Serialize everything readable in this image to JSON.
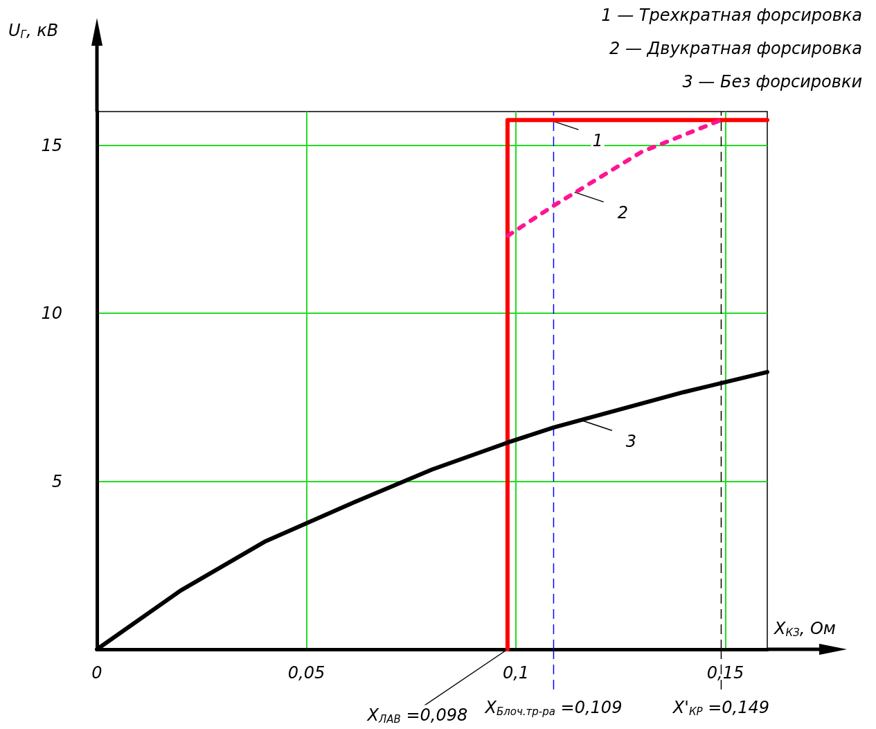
{
  "chart_data": {
    "type": "line",
    "xlabel": "X$_{КЗ}$, Ом",
    "ylabel": "U$_{Г}$, кВ",
    "xlim": [
      0,
      0.16
    ],
    "ylim": [
      0,
      16
    ],
    "xticks": [
      0,
      {
        "value": 0.05,
        "label": "0,05"
      },
      {
        "value": 0.1,
        "label": "0,1"
      },
      {
        "value": 0.15,
        "label": "0,15"
      }
    ],
    "yticks": [
      {
        "value": 5,
        "label": "5"
      },
      {
        "value": 10,
        "label": "10"
      },
      {
        "value": 15,
        "label": "15"
      }
    ],
    "grid": true,
    "marker": "none",
    "series": [
      {
        "color": "#ff0000",
        "line_style": "solid",
        "x": [
          0.098,
          0.098,
          0.16
        ],
        "values": [
          0,
          15.75,
          15.75
        ]
      },
      {
        "color": "#ff1493",
        "line_style": "dashed",
        "x": [
          0.098,
          0.109,
          0.13,
          0.149
        ],
        "values": [
          12.3,
          13.2,
          14.8,
          15.75
        ]
      },
      {
        "color": "#000000",
        "line_style": "solid",
        "x": [
          0,
          0.02,
          0.04,
          0.06,
          0.08,
          0.098,
          0.109,
          0.14,
          0.16
        ],
        "values": [
          0,
          1.75,
          3.2,
          4.3,
          5.35,
          6.15,
          6.6,
          7.65,
          8.25
        ]
      }
    ],
    "ref_lines": [
      {
        "axis": "x",
        "value": 0.109,
        "label": "X$_{Блоч.тр-ра}$ =0,109",
        "color": "#0000ff",
        "line_style": "dashed"
      },
      {
        "axis": "x",
        "value": 0.149,
        "label": "X'$_{КР}$ =0,149",
        "color": "#000000",
        "line_style": "dashed"
      }
    ],
    "annotations": [
      "1 — Трехкратная форсировка",
      "2 — Двукратная форсировка",
      "3 — Без форсировки",
      {
        "text": "1",
        "x": 0.108,
        "y": 15.75
      },
      {
        "text": "2",
        "x": 0.114,
        "y": 13.6
      },
      {
        "text": "3",
        "x": 0.116,
        "y": 6.8
      },
      {
        "text": "X$_{ЛАВ}$ =0,098",
        "x": 0.098,
        "y": 0
      }
    ]
  }
}
